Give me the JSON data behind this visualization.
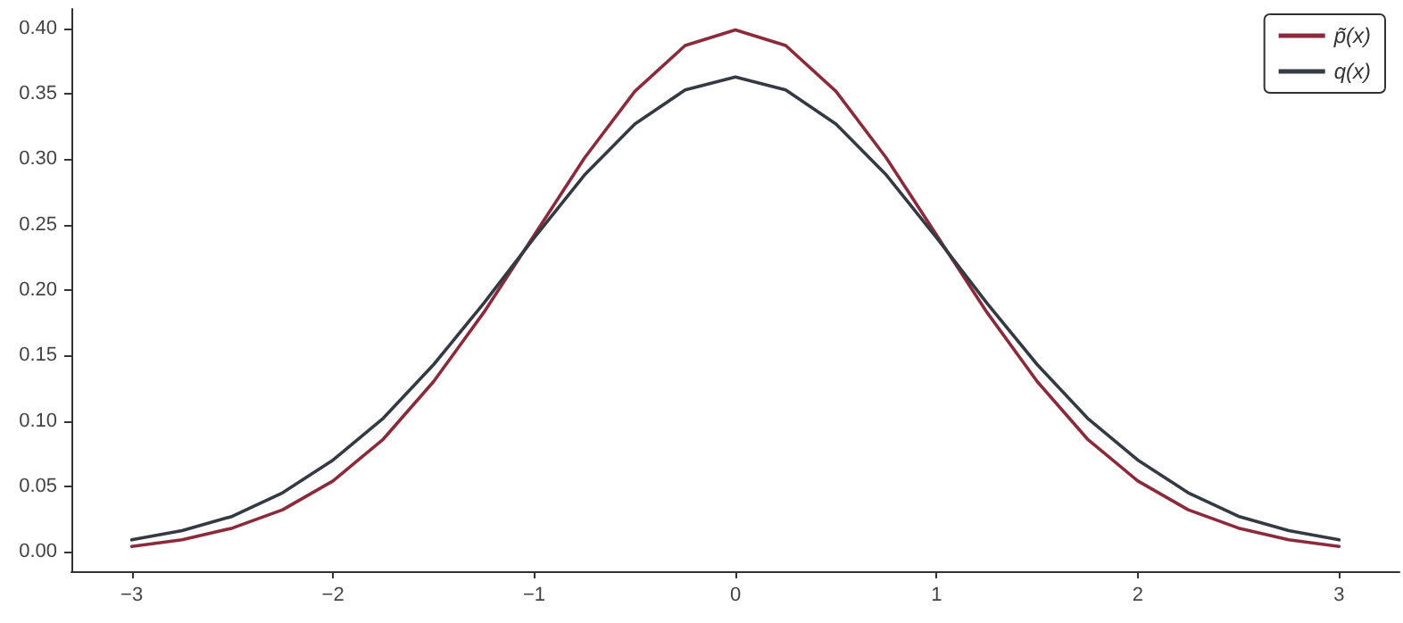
{
  "chart_data": {
    "type": "line",
    "x": [
      -3,
      -2.75,
      -2.5,
      -2.25,
      -2,
      -1.75,
      -1.5,
      -1.25,
      -1,
      -0.75,
      -0.5,
      -0.25,
      0,
      0.25,
      0.5,
      0.75,
      1,
      1.25,
      1.5,
      1.75,
      2,
      2.25,
      2.5,
      2.75,
      3
    ],
    "series": [
      {
        "name": "p̃(x)",
        "color": "#8b2a3a",
        "values": [
          0.004,
          0.009,
          0.018,
          0.032,
          0.054,
          0.086,
          0.13,
          0.183,
          0.242,
          0.301,
          0.352,
          0.387,
          0.399,
          0.387,
          0.352,
          0.301,
          0.242,
          0.183,
          0.13,
          0.086,
          0.054,
          0.032,
          0.018,
          0.009,
          0.004
        ]
      },
      {
        "name": "q(x)",
        "color": "#343a44",
        "values": [
          0.009,
          0.016,
          0.027,
          0.045,
          0.07,
          0.102,
          0.143,
          0.19,
          0.24,
          0.288,
          0.327,
          0.353,
          0.363,
          0.353,
          0.327,
          0.288,
          0.24,
          0.19,
          0.143,
          0.102,
          0.07,
          0.045,
          0.027,
          0.016,
          0.009
        ]
      }
    ],
    "xlim": [
      -3.3,
      3.3
    ],
    "xticks": [
      {
        "value": -3,
        "label": "−3"
      },
      {
        "value": -2,
        "label": "−2"
      },
      {
        "value": -1,
        "label": "−1"
      },
      0,
      1,
      2,
      3
    ],
    "ylim": [
      -0.015,
      0.415
    ],
    "yticks": [
      {
        "value": 0,
        "label": "0.00"
      },
      {
        "value": 0.05,
        "label": "0.05"
      },
      {
        "value": 0.1,
        "label": "0.10"
      },
      {
        "value": 0.15,
        "label": "0.15"
      },
      {
        "value": 0.2,
        "label": "0.20"
      },
      {
        "value": 0.25,
        "label": "0.25"
      },
      {
        "value": 0.3,
        "label": "0.30"
      },
      {
        "value": 0.35,
        "label": "0.35"
      },
      {
        "value": 0.4,
        "label": "0.40"
      }
    ],
    "legend": "top right",
    "marker": "none",
    "line_style": "solid"
  }
}
